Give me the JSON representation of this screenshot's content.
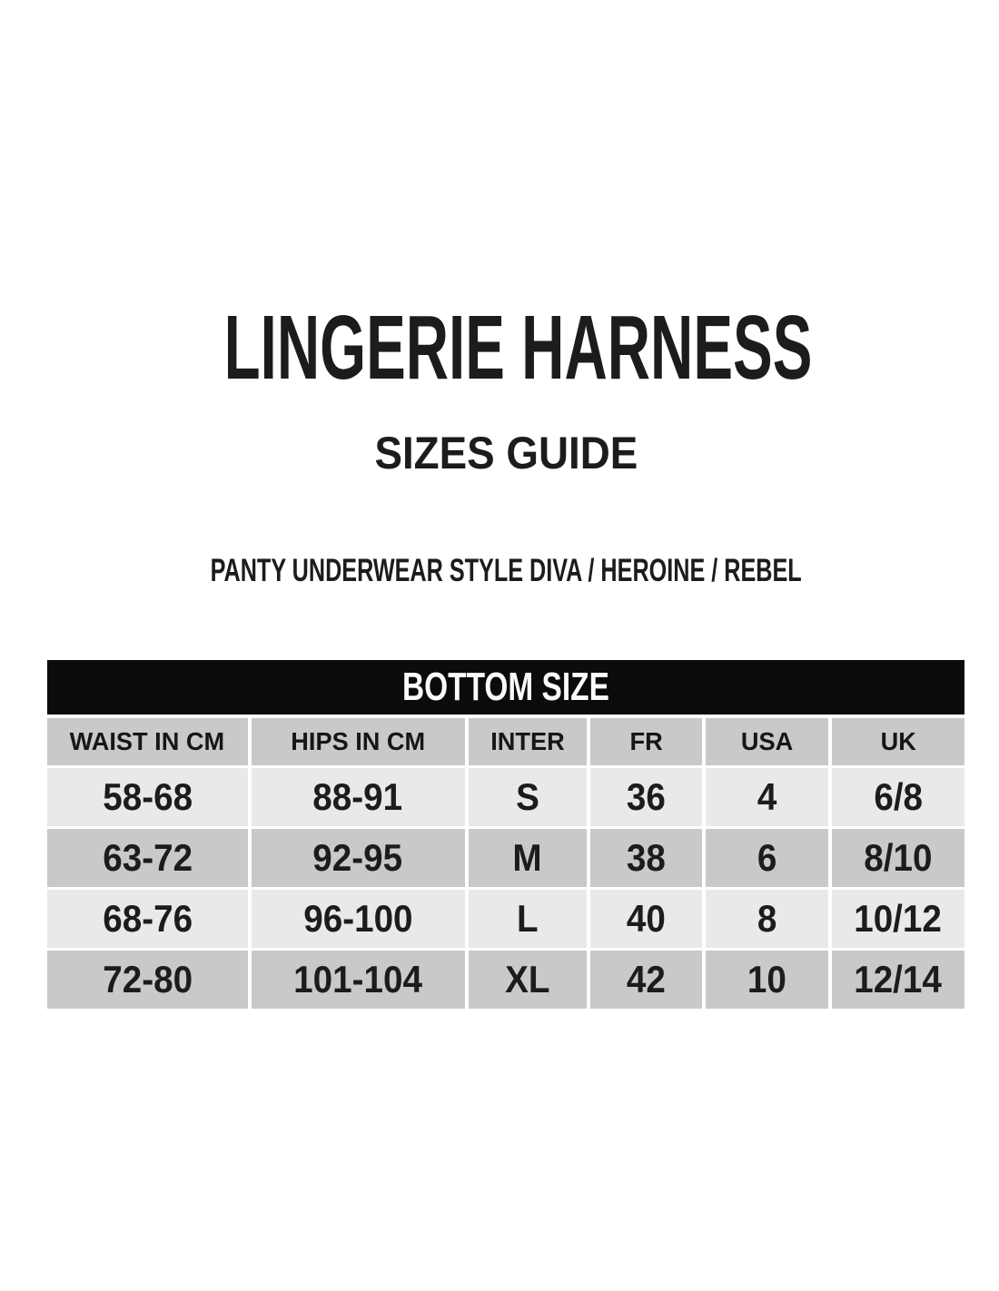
{
  "page": {
    "title": "LINGERIE HARNESS",
    "subtitle": "SIZES GUIDE",
    "style_line": "PANTY UNDERWEAR STYLE DIVA / HEROINE / REBEL"
  },
  "table": {
    "banner": "BOTTOM SIZE",
    "columns": [
      "WAIST IN CM",
      "HIPS IN CM",
      "INTER",
      "FR",
      "USA",
      "UK"
    ],
    "rows": [
      [
        "58-68",
        "88-91",
        "S",
        "36",
        "4",
        "6/8"
      ],
      [
        "63-72",
        "92-95",
        "M",
        "38",
        "6",
        "8/10"
      ],
      [
        "68-76",
        "96-100",
        "L",
        "40",
        "8",
        "10/12"
      ],
      [
        "72-80",
        "101-104",
        "XL",
        "42",
        "10",
        "12/14"
      ]
    ]
  },
  "colors": {
    "page_bg": "#ffffff",
    "banner_bg": "#0b0b0b",
    "banner_text": "#fafafa",
    "row_dark": "#c9c9c9",
    "row_light": "#e9e9e9",
    "text": "#1c1c1c"
  }
}
